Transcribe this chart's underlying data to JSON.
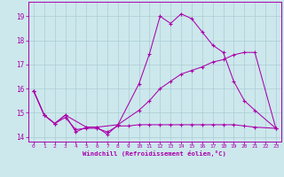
{
  "title": "",
  "xlabel": "Windchill (Refroidissement éolien,°C)",
  "bg_color": "#cce8ec",
  "grid_color": "#aaccd4",
  "line_color": "#aa00aa",
  "xlim": [
    -0.5,
    23.5
  ],
  "ylim": [
    13.8,
    19.6
  ],
  "xticks": [
    0,
    1,
    2,
    3,
    4,
    5,
    6,
    7,
    8,
    9,
    10,
    11,
    12,
    13,
    14,
    15,
    16,
    17,
    18,
    19,
    20,
    21,
    22,
    23
  ],
  "yticks": [
    14,
    15,
    16,
    17,
    18,
    19
  ],
  "line1_x": [
    0,
    1,
    2,
    3,
    4,
    5,
    6,
    7,
    8,
    10,
    11,
    12,
    13,
    14,
    15,
    16,
    17,
    18,
    19,
    20,
    21,
    23
  ],
  "line1_y": [
    15.9,
    14.9,
    14.55,
    14.9,
    14.2,
    14.4,
    14.4,
    14.1,
    14.5,
    16.2,
    17.45,
    19.0,
    18.7,
    19.1,
    18.9,
    18.35,
    17.8,
    17.5,
    16.3,
    15.5,
    15.1,
    14.35
  ],
  "line2_x": [
    0,
    1,
    2,
    3,
    5,
    6,
    8,
    10,
    11,
    12,
    13,
    14,
    15,
    16,
    17,
    18,
    19,
    20,
    21,
    23
  ],
  "line2_y": [
    15.9,
    14.9,
    14.55,
    14.9,
    14.4,
    14.4,
    14.5,
    15.1,
    15.5,
    16.0,
    16.3,
    16.6,
    16.75,
    16.9,
    17.1,
    17.2,
    17.4,
    17.5,
    17.5,
    14.35
  ],
  "line3_x": [
    0,
    1,
    2,
    3,
    4,
    5,
    6,
    7,
    8,
    9,
    10,
    11,
    12,
    13,
    14,
    15,
    16,
    17,
    18,
    19,
    20,
    21,
    23
  ],
  "line3_y": [
    15.9,
    14.9,
    14.55,
    14.8,
    14.3,
    14.35,
    14.35,
    14.2,
    14.45,
    14.45,
    14.5,
    14.5,
    14.5,
    14.5,
    14.5,
    14.5,
    14.5,
    14.5,
    14.5,
    14.5,
    14.45,
    14.4,
    14.35
  ]
}
